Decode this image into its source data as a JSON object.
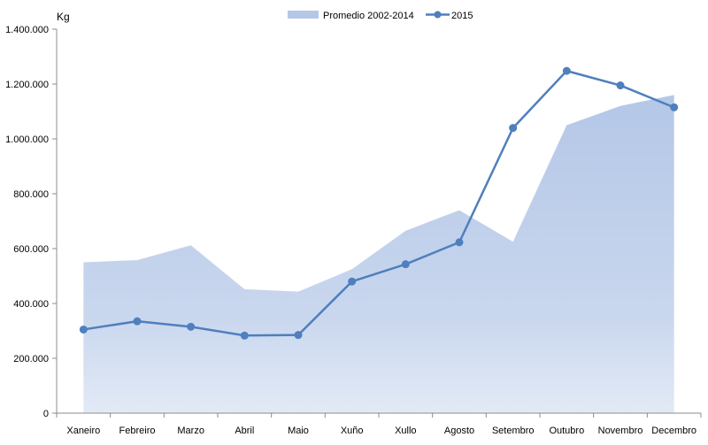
{
  "chart_data": {
    "type": "area",
    "ylabel": "Kg",
    "ylim": [
      0,
      1400000
    ],
    "yticks": [
      0,
      200000,
      400000,
      600000,
      800000,
      1000000,
      1200000,
      1400000
    ],
    "ytick_labels": [
      "0",
      "200.000",
      "400.000",
      "600.000",
      "800.000",
      "1.000.000",
      "1.200.000",
      "1.400.000"
    ],
    "categories": [
      "Xaneiro",
      "Febreiro",
      "Marzo",
      "Abril",
      "Maio",
      "Xuño",
      "Xullo",
      "Agosto",
      "Setembro",
      "Outubro",
      "Novembro",
      "Decembro"
    ],
    "legend_position": "top",
    "grid": false,
    "series": [
      {
        "name": "Promedio 2002-2014",
        "type": "area",
        "color": "#b4c7e7",
        "values": [
          550000,
          558000,
          612000,
          452000,
          443000,
          525000,
          665000,
          740000,
          625000,
          1050000,
          1120000,
          1160000
        ]
      },
      {
        "name": "2015",
        "type": "line",
        "color": "#4f7fbd",
        "values": [
          305000,
          335000,
          315000,
          283000,
          285000,
          480000,
          543000,
          623000,
          1040000,
          1248000,
          1195000,
          1115000
        ]
      }
    ]
  }
}
